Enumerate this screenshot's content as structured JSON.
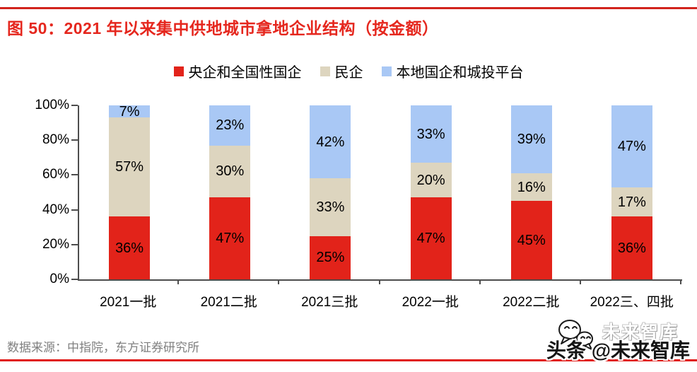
{
  "title": "图 50：2021 年以来集中供地城市拿地企业结构（按金额）",
  "source": "数据来源：中指院，东方证券研究所",
  "watermark": {
    "platform": "头条",
    "handle": "@未来智库",
    "ghost": "未来智库",
    "icon": "chat-bubbles-icon"
  },
  "colors": {
    "top_rule_red": "#d2241d",
    "bottom_rule_red": "#e01a17",
    "title_red": "#e5271e",
    "axis_gray": "#4d4d4d",
    "source_gray": "#808080"
  },
  "chart_data": {
    "type": "bar",
    "stacked": true,
    "percent": true,
    "title": "2021 年以来集中供地城市拿地企业结构（按金额）",
    "categories": [
      "2021一批",
      "2021二批",
      "2021三批",
      "2022一批",
      "2022二批",
      "2022三、四批"
    ],
    "series": [
      {
        "name": "央企和全国性国企",
        "color": "#e2231a",
        "values": [
          36,
          47,
          25,
          47,
          45,
          36
        ]
      },
      {
        "name": "民企",
        "color": "#ddd5bf",
        "values": [
          57,
          30,
          33,
          20,
          16,
          17
        ]
      },
      {
        "name": "本地国企和城投平台",
        "color": "#a9c8f5",
        "values": [
          7,
          23,
          42,
          33,
          39,
          47
        ]
      }
    ],
    "ylim": [
      0,
      100
    ],
    "yticks": [
      0,
      20,
      40,
      60,
      80,
      100
    ],
    "ytick_suffix": "%",
    "value_suffix": "%",
    "grid": false,
    "legend_position": "top"
  }
}
